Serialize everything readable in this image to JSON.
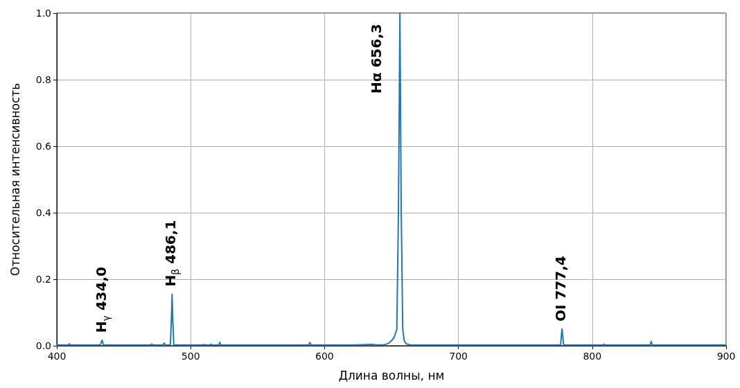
{
  "chart_data": {
    "type": "line",
    "xlabel": "Длина волны, нм",
    "ylabel": "Относительная интенсивность",
    "xlim": [
      400,
      900
    ],
    "xticks": [
      400,
      500,
      600,
      700,
      800,
      900
    ],
    "ylim": [
      0,
      1
    ],
    "yticks": [
      {
        "value": 0,
        "label": "0.0"
      },
      0.2,
      0.4,
      0.6,
      0.8,
      {
        "value": 1,
        "label": "1.0"
      }
    ],
    "grid": true,
    "marker": "none",
    "line_style": "solid",
    "series": [
      {
        "color": "#1f77b4",
        "x": [
          400,
          405,
          408.5,
          409.3,
          410,
          420,
          432.5,
          433.5,
          434.0,
          434.6,
          435.5,
          450,
          470,
          471,
          472,
          479.3,
          480.2,
          481,
          484.8,
          485.6,
          486.1,
          486.6,
          487.4,
          500,
          509.5,
          510.2,
          511,
          514.5,
          515.3,
          516,
          521,
          521.7,
          522.4,
          550,
          588.3,
          589,
          589.8,
          620,
          635.5,
          640,
          645,
          648,
          650,
          652,
          654,
          655.2,
          656.3,
          657.3,
          658.4,
          659.5,
          661,
          664,
          700,
          750,
          776.3,
          776.9,
          777.4,
          777.9,
          778.6,
          800,
          808.3,
          808.9,
          809.5,
          843.2,
          844,
          844.8,
          870,
          900
        ],
        "values": [
          0.002,
          0.002,
          0.002,
          0.006,
          0.002,
          0.002,
          0.002,
          0.014,
          0.016,
          0.004,
          0.002,
          0.002,
          0.002,
          0.005,
          0.002,
          0.002,
          0.008,
          0.002,
          0.002,
          0.08,
          0.155,
          0.08,
          0.002,
          0.002,
          0.002,
          0.004,
          0.002,
          0.002,
          0.005,
          0.002,
          0.002,
          0.01,
          0.002,
          0.002,
          0.002,
          0.01,
          0.002,
          0.002,
          0.004,
          0.002,
          0.003,
          0.008,
          0.015,
          0.025,
          0.05,
          0.4,
          1.0,
          0.4,
          0.05,
          0.015,
          0.006,
          0.002,
          0.002,
          0.002,
          0.002,
          0.03,
          0.05,
          0.03,
          0.002,
          0.002,
          0.002,
          0.005,
          0.002,
          0.002,
          0.013,
          0.002,
          0.002,
          0.002
        ]
      }
    ],
    "annotations": [
      {
        "text": "H$_{γ}$ 434,0",
        "x": 434.0,
        "y": 0.016
      },
      {
        "text": "H$_{β}$ 486,1",
        "x": 486.1,
        "y": 0.155
      },
      {
        "text": "Hα 656,3",
        "x": 656.3,
        "y": 1.0
      },
      {
        "text": "OI 777,4",
        "x": 777.4,
        "y": 0.05
      }
    ]
  }
}
